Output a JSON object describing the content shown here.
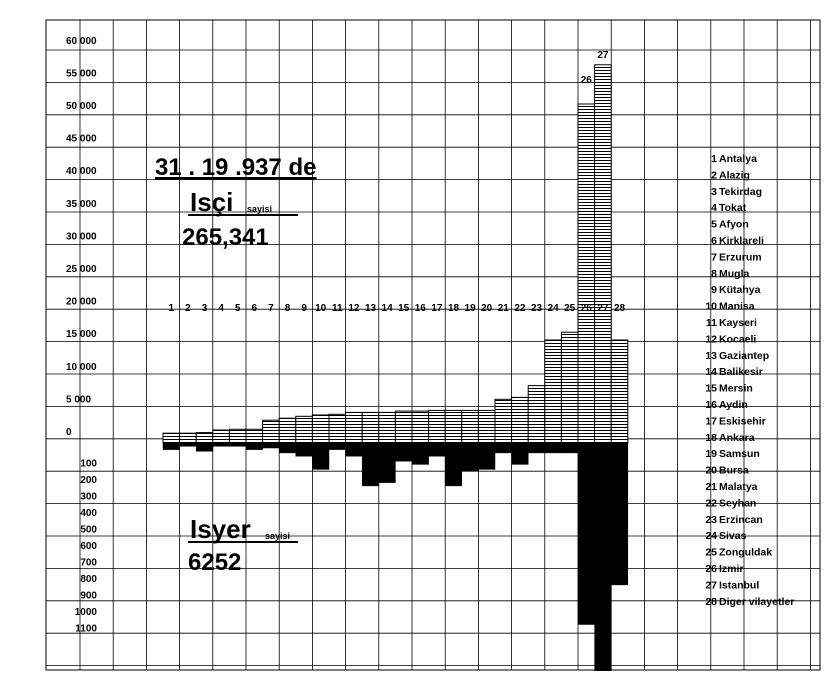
{
  "chart_data": {
    "type": "bar",
    "title": "31 . 19 .937 de",
    "upper": {
      "label": "Isçi",
      "suffix": "sayisi",
      "total": "265,341",
      "tick_labels": [
        "0",
        "5 000",
        "10 000",
        "15 000",
        "20 000",
        "25 000",
        "30 000",
        "35 000",
        "40 000",
        "45 000",
        "50 000",
        "55 000",
        "60 000"
      ],
      "tick_values": [
        0,
        5000,
        10000,
        15000,
        20000,
        25000,
        30000,
        35000,
        40000,
        45000,
        50000,
        55000,
        60000
      ],
      "ylim": [
        0,
        60000
      ]
    },
    "lower": {
      "label": "Isyer",
      "suffix": "sayisi",
      "total": "6252",
      "tick_labels": [
        "100",
        "200",
        "300",
        "400",
        "500",
        "600",
        "700",
        "800",
        "900",
        "1000",
        "1100"
      ],
      "tick_values": [
        100,
        200,
        300,
        400,
        500,
        600,
        700,
        800,
        900,
        1000,
        1100
      ],
      "ylim": [
        0,
        1350
      ]
    },
    "categories": [
      "1",
      "2",
      "3",
      "4",
      "5",
      "6",
      "7",
      "8",
      "9",
      "10",
      "11",
      "12",
      "13",
      "14",
      "15",
      "16",
      "17",
      "18",
      "19",
      "20",
      "21",
      "22",
      "23",
      "24",
      "25",
      "26",
      "27",
      "28"
    ],
    "bar_labels_top": [
      "26",
      "27"
    ],
    "series": [
      {
        "name": "Isçi sayisi",
        "values": [
          1500,
          1500,
          1600,
          2000,
          2100,
          2100,
          3500,
          3800,
          4100,
          4300,
          4400,
          4700,
          4700,
          4700,
          4900,
          4900,
          5000,
          5000,
          5000,
          5000,
          6700,
          7000,
          8800,
          15800,
          17000,
          52000,
          58000,
          15800
        ]
      },
      {
        "name": "Isyer sayisi",
        "values": [
          40,
          20,
          50,
          20,
          20,
          40,
          30,
          60,
          80,
          160,
          40,
          80,
          260,
          240,
          110,
          130,
          80,
          260,
          170,
          160,
          60,
          130,
          60,
          60,
          60,
          1100,
          1380,
          860
        ]
      }
    ],
    "legend": {
      "placement": "right",
      "entries": [
        {
          "num": "1",
          "name": "Antalya"
        },
        {
          "num": "2",
          "name": "Alazig"
        },
        {
          "num": "3",
          "name": "Tekirdag"
        },
        {
          "num": "4",
          "name": "Tokat"
        },
        {
          "num": "5",
          "name": "Afyon"
        },
        {
          "num": "6",
          "name": "Kirklareli"
        },
        {
          "num": "7",
          "name": "Erzurum"
        },
        {
          "num": "8",
          "name": "Mugla"
        },
        {
          "num": "9",
          "name": "Kütahya"
        },
        {
          "num": "10",
          "name": "Manisa"
        },
        {
          "num": "11",
          "name": "Kayseri"
        },
        {
          "num": "12",
          "name": "Kocaeli"
        },
        {
          "num": "13",
          "name": "Gaziantep"
        },
        {
          "num": "14",
          "name": "Balikesir"
        },
        {
          "num": "15",
          "name": "Mersin"
        },
        {
          "num": "16",
          "name": "Aydin"
        },
        {
          "num": "17",
          "name": "Eskisehir"
        },
        {
          "num": "18",
          "name": "Ankara"
        },
        {
          "num": "19",
          "name": "Samsun"
        },
        {
          "num": "20",
          "name": "Bursa"
        },
        {
          "num": "21",
          "name": "Malatya"
        },
        {
          "num": "22",
          "name": "Seyhan"
        },
        {
          "num": "23",
          "name": "Erzincan"
        },
        {
          "num": "24",
          "name": "Sivas"
        },
        {
          "num": "25",
          "name": "Zonguldak"
        },
        {
          "num": "26",
          "name": "Izmir"
        },
        {
          "num": "27",
          "name": "Istanbul"
        },
        {
          "num": "28",
          "name": "Diger vilayetler"
        }
      ]
    },
    "grid": true
  }
}
